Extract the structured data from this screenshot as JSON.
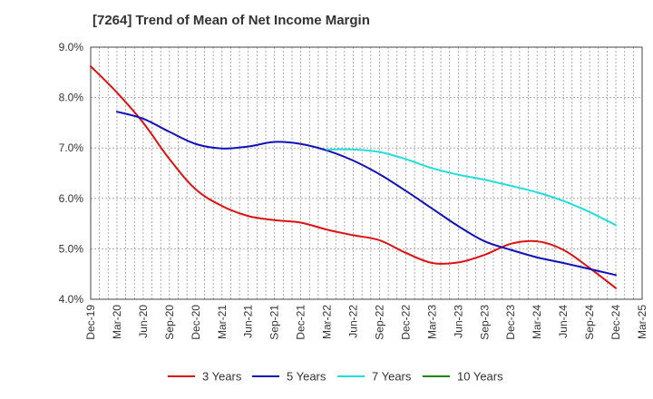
{
  "chart_data": {
    "type": "line",
    "title": "[7264]  Trend of Mean of Net Income Margin",
    "x": [
      "Dec-19",
      "Mar-20",
      "Jun-20",
      "Sep-20",
      "Dec-20",
      "Mar-21",
      "Jun-21",
      "Sep-21",
      "Dec-21",
      "Mar-22",
      "Jun-22",
      "Sep-22",
      "Dec-22",
      "Mar-23",
      "Jun-23",
      "Sep-23",
      "Dec-23",
      "Mar-24",
      "Jun-24",
      "Sep-24",
      "Dec-24",
      "Mar-25"
    ],
    "ylim": [
      4.0,
      9.0
    ],
    "y_ticks": [
      "4.0%",
      "5.0%",
      "6.0%",
      "7.0%",
      "8.0%",
      "9.0%"
    ],
    "grid": true,
    "legend_position": "bottom",
    "series": [
      {
        "name": "3 Years",
        "color": "#dd1111",
        "values": [
          8.62,
          8.1,
          7.5,
          6.78,
          6.18,
          5.85,
          5.65,
          5.57,
          5.52,
          5.38,
          5.27,
          5.17,
          4.92,
          4.72,
          4.73,
          4.88,
          5.1,
          5.15,
          4.98,
          4.62,
          4.22,
          null
        ]
      },
      {
        "name": "5 Years",
        "color": "#1111bb",
        "values": [
          null,
          7.72,
          7.58,
          7.32,
          7.08,
          6.99,
          7.03,
          7.12,
          7.08,
          6.95,
          6.75,
          6.48,
          6.15,
          5.8,
          5.45,
          5.15,
          4.98,
          4.83,
          4.72,
          4.6,
          4.48,
          null
        ]
      },
      {
        "name": "7 Years",
        "color": "#22dddd",
        "values": [
          null,
          null,
          null,
          null,
          null,
          null,
          null,
          null,
          null,
          6.97,
          6.97,
          6.92,
          6.78,
          6.6,
          6.47,
          6.37,
          6.25,
          6.12,
          5.95,
          5.73,
          5.47,
          null
        ]
      },
      {
        "name": "10 Years",
        "color": "#118811",
        "values": [
          null,
          null,
          null,
          null,
          null,
          null,
          null,
          null,
          null,
          null,
          null,
          null,
          null,
          null,
          null,
          null,
          null,
          null,
          null,
          null,
          null,
          null
        ]
      }
    ]
  }
}
